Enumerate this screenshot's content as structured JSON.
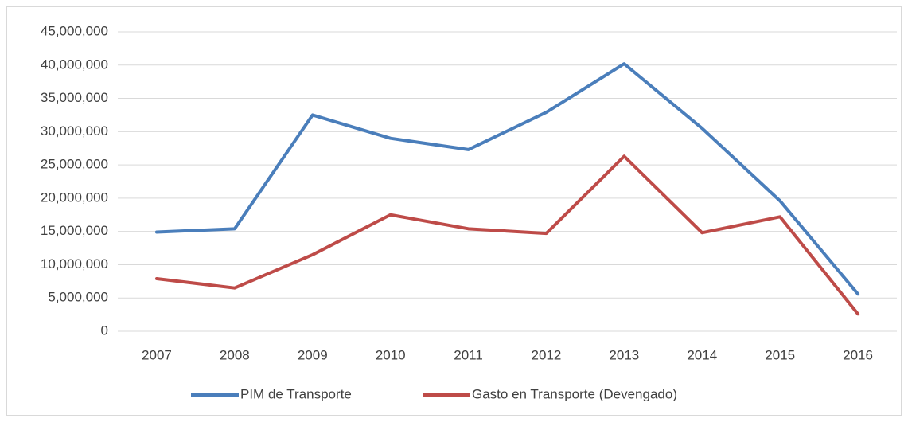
{
  "chart_data": {
    "type": "line",
    "categories": [
      "2007",
      "2008",
      "2009",
      "2010",
      "2011",
      "2012",
      "2013",
      "2014",
      "2015",
      "2016"
    ],
    "series": [
      {
        "name": "PIM de Transporte",
        "color": "#4a7ebb",
        "values": [
          14900000,
          15400000,
          32500000,
          29000000,
          27300000,
          32900000,
          40200000,
          30500000,
          19600000,
          5600000
        ]
      },
      {
        "name": "Gasto en Transporte (Devengado)",
        "color": "#be4b48",
        "values": [
          7900000,
          6500000,
          11500000,
          17500000,
          15400000,
          14700000,
          26300000,
          14800000,
          17200000,
          2600000
        ]
      }
    ],
    "ylim": [
      0,
      45000000
    ],
    "yticks": [
      0,
      {
        "value": 5000000,
        "label": "5,000,000"
      },
      {
        "value": 10000000,
        "label": "10,000,000"
      },
      {
        "value": 15000000,
        "label": "15,000,000"
      },
      {
        "value": 20000000,
        "label": "20,000,000"
      },
      {
        "value": 25000000,
        "label": "25,000,000"
      },
      {
        "value": 30000000,
        "label": "30,000,000"
      },
      {
        "value": 35000000,
        "label": "35,000,000"
      },
      {
        "value": 40000000,
        "label": "40,000,000"
      },
      {
        "value": 45000000,
        "label": "45,000,000"
      }
    ],
    "grid": true,
    "legend": "bottom"
  }
}
